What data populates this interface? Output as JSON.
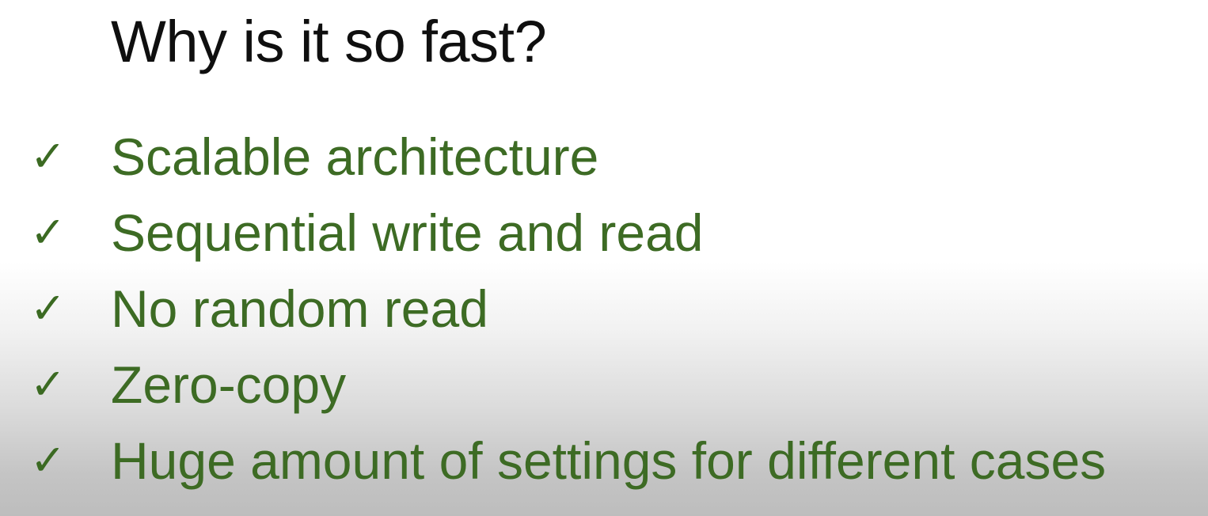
{
  "slide": {
    "title": "Why is it so fast?",
    "check_symbol": "✓",
    "items": [
      {
        "label": "Scalable architecture"
      },
      {
        "label": "Sequential write and read"
      },
      {
        "label": "No random read"
      },
      {
        "label": "Zero-copy"
      },
      {
        "label": "Huge amount of settings for different cases"
      }
    ],
    "colors": {
      "title": "#0f0f0f",
      "accent_green": "#3d6b24",
      "background_top": "#ffffff",
      "background_bottom": "#bdbdbd"
    }
  }
}
